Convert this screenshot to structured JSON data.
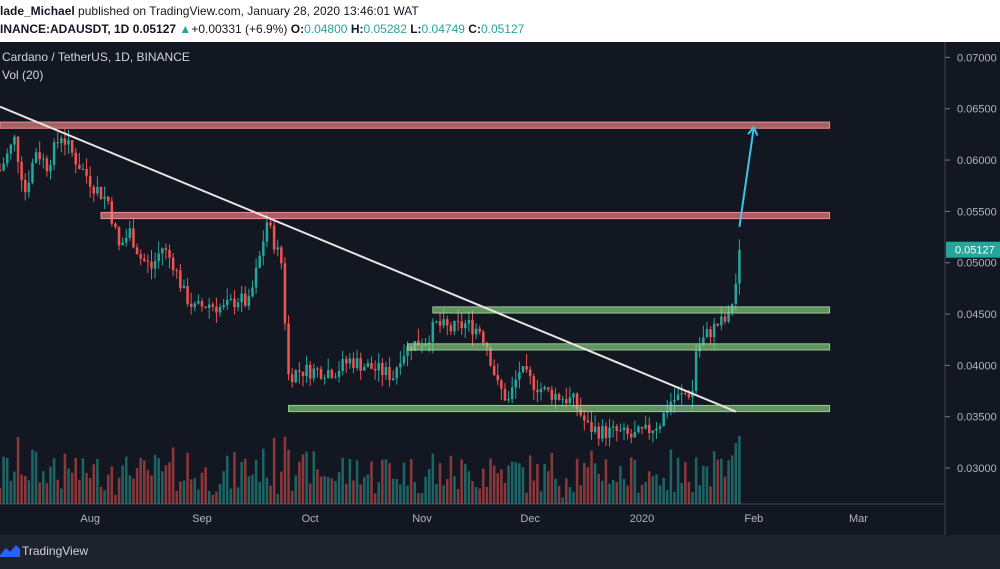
{
  "header": {
    "author": "lade_Michael",
    "published": "published on TradingView.com, January 28, 2020 13:46:01 WAT",
    "symbol_prefix": "INANCE:ADAUSDT, 1D",
    "price": "0.05127",
    "change_arrow": "▲",
    "change": "+0.00331 (+6.9%)",
    "o_label": "O:",
    "o_value": "0.04800",
    "h_label": "H:",
    "h_value": "0.05282",
    "l_label": "L:",
    "l_value": "0.04749",
    "c_label": "C:",
    "c_value": "0.05127"
  },
  "legend": {
    "title": "Cardano / TetherUS, 1D, BINANCE",
    "volume": "Vol (20)"
  },
  "footer": {
    "brand": "TradingView",
    "logo_icon": "tradingview-logo-icon"
  },
  "colors": {
    "background": "#131722",
    "up": "#26a69a",
    "down": "#ef5350",
    "resistance_zone": "#f28b8b",
    "support_zone": "#8fd18a",
    "trendline": "#e8e4df",
    "target_arrow": "#3ec3e6",
    "price_label": "#26a69a"
  },
  "chart_data": {
    "type": "candlestick",
    "title": "Cardano / TetherUS, 1D, BINANCE",
    "x_axis_labels": [
      {
        "label": "Aug",
        "date": "2019-08-01"
      },
      {
        "label": "Sep",
        "date": "2019-09-01"
      },
      {
        "label": "Oct",
        "date": "2019-10-01"
      },
      {
        "label": "Nov",
        "date": "2019-11-01"
      },
      {
        "label": "Dec",
        "date": "2019-12-01"
      },
      {
        "label": "2020",
        "date": "2020-01-01"
      },
      {
        "label": "Feb",
        "date": "2020-02-01"
      },
      {
        "label": "Mar",
        "date": "2020-03-01"
      }
    ],
    "y_axis_labels": [
      "0.07000",
      "0.06500",
      "0.06000",
      "0.05500",
      "0.05000",
      "0.04500",
      "0.04000",
      "0.03500",
      "0.03000"
    ],
    "ylim": [
      0.0265,
      0.0715
    ],
    "xlim": [
      "2019-07-07",
      "2020-03-25"
    ],
    "last_price": "0.05127",
    "close_path": [
      [
        "2019-07-07",
        0.059
      ],
      [
        "2019-07-11",
        0.062
      ],
      [
        "2019-07-14",
        0.057
      ],
      [
        "2019-07-17",
        0.061
      ],
      [
        "2019-07-20",
        0.0595
      ],
      [
        "2019-07-24",
        0.0625
      ],
      [
        "2019-07-28",
        0.06
      ],
      [
        "2019-08-02",
        0.0575
      ],
      [
        "2019-08-06",
        0.056
      ],
      [
        "2019-08-09",
        0.0515
      ],
      [
        "2019-08-12",
        0.053
      ],
      [
        "2019-08-15",
        0.0505
      ],
      [
        "2019-08-18",
        0.0495
      ],
      [
        "2019-08-21",
        0.0515
      ],
      [
        "2019-08-24",
        0.05
      ],
      [
        "2019-08-27",
        0.047
      ],
      [
        "2019-08-30",
        0.0455
      ],
      [
        "2019-09-03",
        0.046
      ],
      [
        "2019-09-07",
        0.0455
      ],
      [
        "2019-09-11",
        0.0465
      ],
      [
        "2019-09-14",
        0.046
      ],
      [
        "2019-09-17",
        0.0505
      ],
      [
        "2019-09-19",
        0.054
      ],
      [
        "2019-09-21",
        0.052
      ],
      [
        "2019-09-23",
        0.05
      ],
      [
        "2019-09-25",
        0.039
      ],
      [
        "2019-09-28",
        0.0395
      ],
      [
        "2019-10-03",
        0.0395
      ],
      [
        "2019-10-08",
        0.0395
      ],
      [
        "2019-10-12",
        0.0405
      ],
      [
        "2019-10-16",
        0.04
      ],
      [
        "2019-10-20",
        0.0395
      ],
      [
        "2019-10-24",
        0.039
      ],
      [
        "2019-10-26",
        0.041
      ],
      [
        "2019-10-29",
        0.042
      ],
      [
        "2019-11-02",
        0.0425
      ],
      [
        "2019-11-05",
        0.044
      ],
      [
        "2019-11-09",
        0.0435
      ],
      [
        "2019-11-13",
        0.044
      ],
      [
        "2019-11-17",
        0.0435
      ],
      [
        "2019-11-19",
        0.042
      ],
      [
        "2019-11-22",
        0.038
      ],
      [
        "2019-11-25",
        0.0365
      ],
      [
        "2019-11-28",
        0.0395
      ],
      [
        "2019-12-01",
        0.0385
      ],
      [
        "2019-12-05",
        0.0375
      ],
      [
        "2019-12-09",
        0.037
      ],
      [
        "2019-12-13",
        0.0365
      ],
      [
        "2019-12-17",
        0.034
      ],
      [
        "2019-12-21",
        0.0335
      ],
      [
        "2019-12-25",
        0.0335
      ],
      [
        "2019-12-29",
        0.033
      ],
      [
        "2020-01-02",
        0.0335
      ],
      [
        "2020-01-06",
        0.0345
      ],
      [
        "2020-01-09",
        0.0365
      ],
      [
        "2020-01-12",
        0.037
      ],
      [
        "2020-01-15",
        0.0375
      ],
      [
        "2020-01-16",
        0.0415
      ],
      [
        "2020-01-19",
        0.043
      ],
      [
        "2020-01-22",
        0.044
      ],
      [
        "2020-01-25",
        0.0445
      ],
      [
        "2020-01-27",
        0.048
      ],
      [
        "2020-01-28",
        0.05127
      ]
    ],
    "horizontal_zones": [
      {
        "type": "resistance",
        "from": "2019-07-07",
        "to": "2020-02-22",
        "y_low": 0.0631,
        "y_high": 0.0637
      },
      {
        "type": "resistance",
        "from": "2019-08-04",
        "to": "2020-02-22",
        "y_low": 0.0543,
        "y_high": 0.0549
      },
      {
        "type": "support",
        "from": "2019-11-04",
        "to": "2020-02-22",
        "y_low": 0.0451,
        "y_high": 0.0457
      },
      {
        "type": "support",
        "from": "2019-10-28",
        "to": "2020-02-22",
        "y_low": 0.0415,
        "y_high": 0.0421
      },
      {
        "type": "support",
        "from": "2019-09-25",
        "to": "2020-02-22",
        "y_low": 0.0355,
        "y_high": 0.0361
      }
    ],
    "trendline": [
      [
        "2019-07-07",
        0.0652
      ],
      [
        "2020-01-27",
        0.0355
      ]
    ],
    "target_arrow": [
      [
        "2020-01-28",
        0.0535
      ],
      [
        "2020-02-01",
        0.0632
      ]
    ]
  }
}
